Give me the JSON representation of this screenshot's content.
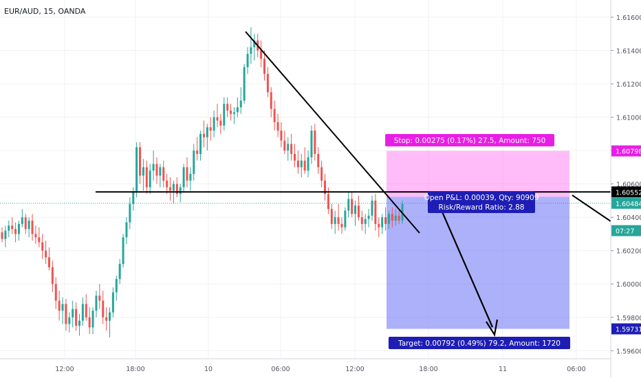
{
  "symbol_title": "EUR/AUD, 15, OANDA",
  "chart_data": {
    "type": "candlestick",
    "title": "EUR/AUD, 15, OANDA",
    "y_axis_side": "right",
    "ylim": [
      1.5956,
      1.6167
    ],
    "y_ticks": [
      "1.61600",
      "1.61400",
      "1.61200",
      "1.61000",
      "1.60800",
      "1.60600",
      "1.60400",
      "1.60200",
      "1.60000",
      "1.59800",
      "1.59600"
    ],
    "x_tick_labels": [
      "12:00",
      "18:00",
      "10",
      "06:00",
      "12:00",
      "18:00",
      "11",
      "06:00"
    ],
    "grid": true,
    "price_badges": [
      {
        "text": "1.60798",
        "value": 1.60798,
        "color": "#e91ee6"
      },
      {
        "text": "1.60552",
        "value": 1.60552,
        "color": "#000000"
      },
      {
        "text": "1.60484",
        "value": 1.60484,
        "color": "#26a69a"
      },
      {
        "text": "07:27",
        "value": 1.6032,
        "color": "#26a69a"
      },
      {
        "text": "1.59731",
        "value": 1.59731,
        "color": "#1e1eb4"
      }
    ],
    "last_price_line": 1.60484,
    "horizontal_line": 1.60552,
    "position": {
      "side": "short",
      "entry": 1.60523,
      "stop": 1.60798,
      "target": 1.59731,
      "stop_label": "Stop: 0.00275 (0.17%) 27.5, Amount: 750",
      "target_label": "Target: 0.00792 (0.49%) 79.2, Amount: 1720",
      "pnl_label": "Open P&L: 0.00039, Qty: 90909",
      "rr_label": "Risk/Reward Ratio: 2.88"
    },
    "candles": [
      [
        1.6031,
        1.6034,
        1.6025,
        1.6027
      ],
      [
        1.6027,
        1.6035,
        1.6022,
        1.6032
      ],
      [
        1.6032,
        1.6038,
        1.6028,
        1.6035
      ],
      [
        1.6035,
        1.604,
        1.603,
        1.6033
      ],
      [
        1.6033,
        1.6037,
        1.6025,
        1.603
      ],
      [
        1.603,
        1.6038,
        1.6026,
        1.6036
      ],
      [
        1.6036,
        1.6045,
        1.6034,
        1.604
      ],
      [
        1.604,
        1.6042,
        1.603,
        1.6033
      ],
      [
        1.6033,
        1.604,
        1.6028,
        1.6038
      ],
      [
        1.6038,
        1.6042,
        1.6026,
        1.603
      ],
      [
        1.603,
        1.6035,
        1.6024,
        1.6028
      ],
      [
        1.6028,
        1.6034,
        1.6022,
        1.6025
      ],
      [
        1.6025,
        1.603,
        1.6015,
        1.602
      ],
      [
        1.602,
        1.6026,
        1.6012,
        1.6016
      ],
      [
        1.6016,
        1.6022,
        1.6008,
        1.601
      ],
      [
        1.601,
        1.6014,
        1.5995,
        1.6
      ],
      [
        1.6,
        1.6004,
        1.5985,
        1.599
      ],
      [
        1.599,
        1.5996,
        1.5978,
        1.5984
      ],
      [
        1.5984,
        1.5992,
        1.5976,
        1.5988
      ],
      [
        1.5988,
        1.5991,
        1.5972,
        1.5976
      ],
      [
        1.5976,
        1.5983,
        1.5971,
        1.598
      ],
      [
        1.598,
        1.599,
        1.5974,
        1.5985
      ],
      [
        1.5985,
        1.5989,
        1.5972,
        1.5975
      ],
      [
        1.5975,
        1.5982,
        1.5969,
        1.5978
      ],
      [
        1.5978,
        1.5992,
        1.5975,
        1.5988
      ],
      [
        1.5988,
        1.5994,
        1.5978,
        1.598
      ],
      [
        1.598,
        1.5986,
        1.597,
        1.5974
      ],
      [
        1.5974,
        1.5986,
        1.597,
        1.5984
      ],
      [
        1.5984,
        1.5996,
        1.598,
        1.5993
      ],
      [
        1.5993,
        1.6,
        1.5985,
        1.599
      ],
      [
        1.599,
        1.5996,
        1.5976,
        1.598
      ],
      [
        1.598,
        1.5986,
        1.5972,
        1.5978
      ],
      [
        1.5978,
        1.5986,
        1.5968,
        1.5983
      ],
      [
        1.5983,
        1.5998,
        1.598,
        1.5995
      ],
      [
        1.5995,
        1.6005,
        1.599,
        1.6003
      ],
      [
        1.6003,
        1.6015,
        1.6,
        1.6012
      ],
      [
        1.6012,
        1.603,
        1.601,
        1.6028
      ],
      [
        1.6028,
        1.604,
        1.6024,
        1.6037
      ],
      [
        1.6037,
        1.6052,
        1.6033,
        1.6048
      ],
      [
        1.6048,
        1.6058,
        1.6044,
        1.6055
      ],
      [
        1.6055,
        1.6085,
        1.6052,
        1.6082
      ],
      [
        1.6082,
        1.6085,
        1.606,
        1.6065
      ],
      [
        1.6065,
        1.6075,
        1.6056,
        1.607
      ],
      [
        1.607,
        1.6074,
        1.6054,
        1.6058
      ],
      [
        1.6058,
        1.6072,
        1.6054,
        1.6068
      ],
      [
        1.6068,
        1.608,
        1.6062,
        1.6072
      ],
      [
        1.6072,
        1.6076,
        1.606,
        1.6065
      ],
      [
        1.6065,
        1.6072,
        1.6058,
        1.607
      ],
      [
        1.607,
        1.6074,
        1.6058,
        1.6062
      ],
      [
        1.6062,
        1.6066,
        1.6054,
        1.6058
      ],
      [
        1.6058,
        1.6064,
        1.605,
        1.6056
      ],
      [
        1.6056,
        1.6062,
        1.6048,
        1.606
      ],
      [
        1.606,
        1.6064,
        1.6052,
        1.6054
      ],
      [
        1.6054,
        1.606,
        1.6049,
        1.6058
      ],
      [
        1.6058,
        1.6072,
        1.6055,
        1.607
      ],
      [
        1.607,
        1.6076,
        1.6058,
        1.6062
      ],
      [
        1.6062,
        1.607,
        1.6056,
        1.6066
      ],
      [
        1.6066,
        1.6084,
        1.6062,
        1.608
      ],
      [
        1.608,
        1.6088,
        1.6074,
        1.6078
      ],
      [
        1.6078,
        1.6092,
        1.6074,
        1.609
      ],
      [
        1.609,
        1.6098,
        1.6082,
        1.6088
      ],
      [
        1.6088,
        1.6096,
        1.608,
        1.6094
      ],
      [
        1.6094,
        1.61,
        1.6086,
        1.6092
      ],
      [
        1.6092,
        1.6104,
        1.6088,
        1.61
      ],
      [
        1.61,
        1.6108,
        1.6094,
        1.6098
      ],
      [
        1.6098,
        1.6102,
        1.609,
        1.6095
      ],
      [
        1.6095,
        1.6112,
        1.6092,
        1.6108
      ],
      [
        1.6108,
        1.6112,
        1.61,
        1.6104
      ],
      [
        1.6104,
        1.6108,
        1.6098,
        1.6102
      ],
      [
        1.6102,
        1.6106,
        1.6096,
        1.6103
      ],
      [
        1.6103,
        1.6112,
        1.61,
        1.6106
      ],
      [
        1.6106,
        1.6118,
        1.6102,
        1.611
      ],
      [
        1.611,
        1.6132,
        1.6108,
        1.613
      ],
      [
        1.613,
        1.6142,
        1.6126,
        1.6138
      ],
      [
        1.6138,
        1.6154,
        1.6132,
        1.6142
      ],
      [
        1.6142,
        1.615,
        1.6134,
        1.6146
      ],
      [
        1.6146,
        1.615,
        1.6136,
        1.614
      ],
      [
        1.614,
        1.6146,
        1.613,
        1.6135
      ],
      [
        1.6135,
        1.614,
        1.6122,
        1.6126
      ],
      [
        1.6126,
        1.613,
        1.6112,
        1.6115
      ],
      [
        1.6115,
        1.6118,
        1.61,
        1.6105
      ],
      [
        1.6105,
        1.611,
        1.6092,
        1.6097
      ],
      [
        1.6097,
        1.6102,
        1.6088,
        1.6092
      ],
      [
        1.6092,
        1.6097,
        1.6082,
        1.6086
      ],
      [
        1.6086,
        1.6092,
        1.6078,
        1.608
      ],
      [
        1.608,
        1.6088,
        1.6074,
        1.6084
      ],
      [
        1.6084,
        1.609,
        1.6074,
        1.6078
      ],
      [
        1.6078,
        1.6084,
        1.607,
        1.6074
      ],
      [
        1.6074,
        1.608,
        1.6066,
        1.607
      ],
      [
        1.607,
        1.6078,
        1.6064,
        1.6074
      ],
      [
        1.6074,
        1.6082,
        1.6066,
        1.6068
      ],
      [
        1.6068,
        1.608,
        1.6064,
        1.6076
      ],
      [
        1.6076,
        1.6095,
        1.6072,
        1.6092
      ],
      [
        1.6092,
        1.6096,
        1.6074,
        1.6078
      ],
      [
        1.6078,
        1.6082,
        1.6066,
        1.607
      ],
      [
        1.607,
        1.6074,
        1.6058,
        1.6062
      ],
      [
        1.6062,
        1.6066,
        1.605,
        1.6054
      ],
      [
        1.6054,
        1.6058,
        1.6042,
        1.6045
      ],
      [
        1.6045,
        1.6048,
        1.6033,
        1.6036
      ],
      [
        1.6036,
        1.6044,
        1.603,
        1.604
      ],
      [
        1.604,
        1.6048,
        1.6032,
        1.6036
      ],
      [
        1.6036,
        1.604,
        1.603,
        1.6034
      ],
      [
        1.6034,
        1.6046,
        1.6032,
        1.6044
      ],
      [
        1.6044,
        1.6055,
        1.604,
        1.6051
      ],
      [
        1.6051,
        1.6055,
        1.604,
        1.6042
      ],
      [
        1.6042,
        1.605,
        1.6035,
        1.6047
      ],
      [
        1.6047,
        1.6053,
        1.6038,
        1.604
      ],
      [
        1.604,
        1.6044,
        1.6032,
        1.6036
      ],
      [
        1.6036,
        1.6042,
        1.603,
        1.6039
      ],
      [
        1.6039,
        1.6045,
        1.6034,
        1.6041
      ],
      [
        1.6041,
        1.6053,
        1.6038,
        1.605
      ],
      [
        1.605,
        1.6054,
        1.6032,
        1.6036
      ],
      [
        1.6036,
        1.604,
        1.6028,
        1.6034
      ],
      [
        1.6034,
        1.6042,
        1.603,
        1.604
      ],
      [
        1.604,
        1.6046,
        1.6032,
        1.6036
      ],
      [
        1.6036,
        1.6044,
        1.6033,
        1.6042
      ],
      [
        1.6042,
        1.6046,
        1.6034,
        1.6038
      ],
      [
        1.6038,
        1.6045,
        1.6035,
        1.6041
      ],
      [
        1.6041,
        1.6044,
        1.6036,
        1.6038
      ],
      [
        1.6038,
        1.605,
        1.6036,
        1.6048
      ]
    ]
  }
}
